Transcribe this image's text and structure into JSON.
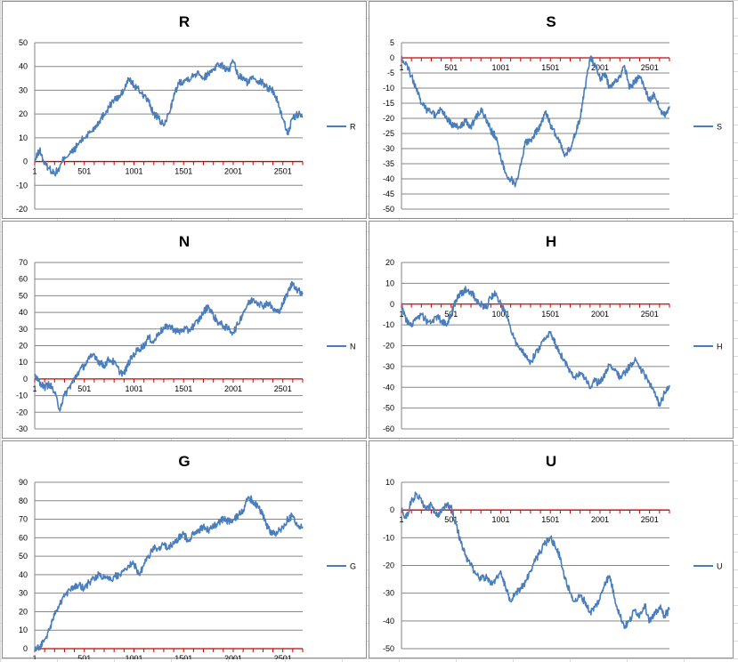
{
  "colors": {
    "series": "#4a7ebb",
    "zero_axis": "#cc0000",
    "gridline": "#868686",
    "sheet_grid": "#d9d9d9"
  },
  "chart_data": [
    {
      "type": "line",
      "title": "R",
      "ylim": [
        -20,
        50
      ],
      "yticks": [
        -20,
        -10,
        0,
        10,
        20,
        30,
        40,
        50
      ],
      "xticks": [
        "1",
        "501",
        "1001",
        "1501",
        "2001",
        "2501"
      ],
      "xlim": [
        1,
        2700
      ],
      "grid": true,
      "legend": "right",
      "series": [
        {
          "name": "R",
          "x": [
            1,
            50,
            100,
            150,
            200,
            250,
            300,
            350,
            400,
            450,
            500,
            550,
            600,
            650,
            700,
            750,
            800,
            850,
            900,
            950,
            1000,
            1050,
            1100,
            1150,
            1200,
            1250,
            1300,
            1350,
            1400,
            1450,
            1500,
            1550,
            1600,
            1650,
            1700,
            1750,
            1800,
            1850,
            1900,
            1950,
            2000,
            2050,
            2100,
            2150,
            2200,
            2250,
            2300,
            2350,
            2400,
            2450,
            2500,
            2550,
            2600,
            2650,
            2700
          ],
          "values": [
            0,
            5,
            -1,
            -3,
            -5,
            -3,
            2,
            3,
            5,
            8,
            10,
            12,
            14,
            17,
            20,
            23,
            26,
            27,
            30,
            35,
            32,
            30,
            28,
            25,
            20,
            18,
            15,
            20,
            27,
            33,
            34,
            35,
            36,
            38,
            35,
            37,
            39,
            41,
            40,
            38,
            42,
            36,
            35,
            33,
            36,
            34,
            33,
            31,
            30,
            25,
            18,
            12,
            18,
            20,
            19
          ]
        }
      ]
    },
    {
      "type": "line",
      "title": "S",
      "ylim": [
        -50,
        5
      ],
      "yticks": [
        -50,
        -45,
        -40,
        -35,
        -30,
        -25,
        -20,
        -15,
        -10,
        -5,
        0,
        5
      ],
      "xticks": [
        "1",
        "501",
        "1001",
        "1501",
        "2001",
        "2501"
      ],
      "xlim": [
        1,
        2700
      ],
      "grid": true,
      "legend": "right",
      "series": [
        {
          "name": "S",
          "x": [
            1,
            50,
            100,
            150,
            200,
            250,
            300,
            350,
            400,
            450,
            500,
            550,
            600,
            650,
            700,
            750,
            800,
            850,
            900,
            950,
            1000,
            1050,
            1100,
            1150,
            1200,
            1250,
            1300,
            1350,
            1400,
            1450,
            1500,
            1550,
            1600,
            1650,
            1700,
            1750,
            1800,
            1850,
            1900,
            1950,
            2000,
            2050,
            2100,
            2150,
            2200,
            2250,
            2300,
            2350,
            2400,
            2450,
            2500,
            2550,
            2600,
            2650,
            2700
          ],
          "values": [
            0,
            -2,
            -6,
            -10,
            -15,
            -17,
            -18,
            -19,
            -17,
            -20,
            -22,
            -23,
            -22,
            -21,
            -23,
            -20,
            -17,
            -20,
            -24,
            -26,
            -33,
            -38,
            -40,
            -42,
            -35,
            -28,
            -27,
            -25,
            -22,
            -18,
            -22,
            -25,
            -28,
            -32,
            -30,
            -25,
            -20,
            -10,
            0,
            -2,
            -7,
            -5,
            -10,
            -8,
            -6,
            -3,
            -10,
            -8,
            -6,
            -10,
            -14,
            -12,
            -17,
            -19,
            -16
          ]
        }
      ]
    },
    {
      "type": "line",
      "title": "N",
      "ylim": [
        -30,
        70
      ],
      "yticks": [
        -30,
        -20,
        -10,
        0,
        10,
        20,
        30,
        40,
        50,
        60,
        70
      ],
      "xticks": [
        "1",
        "501",
        "1001",
        "1501",
        "2001",
        "2501"
      ],
      "xlim": [
        1,
        2700
      ],
      "grid": true,
      "legend": "right",
      "series": [
        {
          "name": "N",
          "x": [
            1,
            50,
            100,
            150,
            200,
            250,
            300,
            350,
            400,
            450,
            500,
            550,
            600,
            650,
            700,
            750,
            800,
            850,
            900,
            950,
            1000,
            1050,
            1100,
            1150,
            1200,
            1250,
            1300,
            1350,
            1400,
            1450,
            1500,
            1550,
            1600,
            1650,
            1700,
            1750,
            1800,
            1850,
            1900,
            1950,
            2000,
            2050,
            2100,
            2150,
            2200,
            2250,
            2300,
            2350,
            2400,
            2450,
            2500,
            2550,
            2600,
            2650,
            2700
          ],
          "values": [
            2,
            -2,
            -5,
            -3,
            -8,
            -18,
            -10,
            -5,
            0,
            5,
            8,
            12,
            15,
            10,
            8,
            12,
            10,
            5,
            3,
            10,
            15,
            18,
            20,
            25,
            22,
            28,
            30,
            32,
            30,
            28,
            30,
            29,
            32,
            35,
            40,
            44,
            38,
            34,
            32,
            30,
            28,
            33,
            40,
            45,
            48,
            46,
            44,
            46,
            42,
            40,
            45,
            52,
            58,
            53,
            52
          ]
        }
      ]
    },
    {
      "type": "line",
      "title": "H",
      "ylim": [
        -60,
        20
      ],
      "yticks": [
        -60,
        -50,
        -40,
        -30,
        -20,
        -10,
        0,
        10,
        20
      ],
      "xticks": [
        "1",
        "501",
        "1001",
        "1501",
        "2001",
        "2501"
      ],
      "xlim": [
        1,
        2700
      ],
      "grid": true,
      "legend": "right",
      "series": [
        {
          "name": "H",
          "x": [
            1,
            50,
            100,
            150,
            200,
            250,
            300,
            350,
            400,
            450,
            500,
            550,
            600,
            650,
            700,
            750,
            800,
            850,
            900,
            950,
            1000,
            1050,
            1100,
            1150,
            1200,
            1250,
            1300,
            1350,
            1400,
            1450,
            1500,
            1550,
            1600,
            1650,
            1700,
            1750,
            1800,
            1850,
            1900,
            1950,
            2000,
            2050,
            2100,
            2150,
            2200,
            2250,
            2300,
            2350,
            2400,
            2450,
            2500,
            2550,
            2600,
            2650,
            2700
          ],
          "values": [
            0,
            -8,
            -10,
            -7,
            -5,
            -8,
            -9,
            -6,
            -8,
            -10,
            -5,
            2,
            5,
            7,
            6,
            2,
            0,
            -2,
            3,
            5,
            0,
            -5,
            -12,
            -18,
            -22,
            -24,
            -28,
            -24,
            -20,
            -17,
            -14,
            -19,
            -24,
            -28,
            -32,
            -35,
            -33,
            -36,
            -40,
            -37,
            -38,
            -34,
            -29,
            -32,
            -35,
            -33,
            -30,
            -27,
            -31,
            -34,
            -38,
            -42,
            -49,
            -43,
            -39
          ]
        }
      ]
    },
    {
      "type": "line",
      "title": "G",
      "ylim": [
        0,
        90
      ],
      "yticks": [
        0,
        10,
        20,
        30,
        40,
        50,
        60,
        70,
        80,
        90
      ],
      "xticks": [
        "1",
        "501",
        "1001",
        "1501",
        "2001",
        "2501"
      ],
      "xlim": [
        1,
        2700
      ],
      "grid": true,
      "legend": "right",
      "series": [
        {
          "name": "G",
          "x": [
            1,
            50,
            100,
            150,
            200,
            250,
            300,
            350,
            400,
            450,
            500,
            550,
            600,
            650,
            700,
            750,
            800,
            850,
            900,
            950,
            1000,
            1050,
            1100,
            1150,
            1200,
            1250,
            1300,
            1350,
            1400,
            1450,
            1500,
            1550,
            1600,
            1650,
            1700,
            1750,
            1800,
            1850,
            1900,
            1950,
            2000,
            2050,
            2100,
            2150,
            2200,
            2250,
            2300,
            2350,
            2400,
            2450,
            2500,
            2550,
            2600,
            2650,
            2700
          ],
          "values": [
            -1,
            1,
            5,
            10,
            18,
            24,
            28,
            32,
            34,
            35,
            32,
            36,
            38,
            40,
            38,
            37,
            39,
            40,
            42,
            45,
            46,
            40,
            45,
            50,
            55,
            54,
            56,
            55,
            57,
            60,
            62,
            58,
            62,
            64,
            66,
            64,
            66,
            68,
            70,
            69,
            70,
            72,
            75,
            82,
            80,
            77,
            72,
            65,
            62,
            63,
            66,
            70,
            72,
            66,
            66
          ]
        }
      ]
    },
    {
      "type": "line",
      "title": "U",
      "ylim": [
        -50,
        10
      ],
      "yticks": [
        -50,
        -40,
        -30,
        -20,
        -10,
        0,
        10
      ],
      "xticks": [
        "1",
        "501",
        "1001",
        "1501",
        "2001",
        "2501"
      ],
      "xlim": [
        1,
        2700
      ],
      "grid": true,
      "legend": "right",
      "series": [
        {
          "name": "U",
          "x": [
            1,
            50,
            100,
            150,
            200,
            250,
            300,
            350,
            400,
            450,
            500,
            550,
            600,
            650,
            700,
            750,
            800,
            850,
            900,
            950,
            1000,
            1050,
            1100,
            1150,
            1200,
            1250,
            1300,
            1350,
            1400,
            1450,
            1500,
            1550,
            1600,
            1650,
            1700,
            1750,
            1800,
            1850,
            1900,
            1950,
            2000,
            2050,
            2100,
            2150,
            2200,
            2250,
            2300,
            2350,
            2400,
            2450,
            2500,
            2550,
            2600,
            2650,
            2700
          ],
          "values": [
            0,
            -3,
            3,
            6,
            4,
            0,
            2,
            -2,
            -1,
            2,
            1,
            -5,
            -12,
            -17,
            -20,
            -23,
            -25,
            -24,
            -27,
            -25,
            -22,
            -28,
            -33,
            -30,
            -28,
            -26,
            -22,
            -18,
            -15,
            -12,
            -10,
            -13,
            -17,
            -25,
            -30,
            -33,
            -31,
            -33,
            -37,
            -35,
            -32,
            -26,
            -24,
            -32,
            -38,
            -42,
            -40,
            -36,
            -38,
            -34,
            -40,
            -38,
            -35,
            -38,
            -36
          ]
        }
      ]
    }
  ]
}
